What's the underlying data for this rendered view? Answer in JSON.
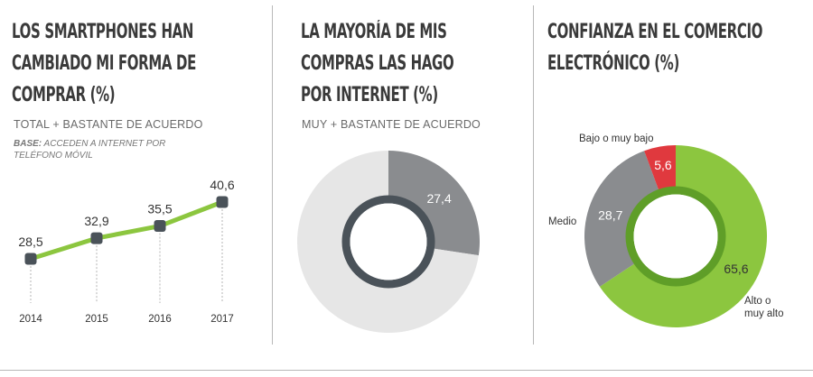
{
  "panels": {
    "p1": {
      "title_lines": [
        "LOS SMARTPHONES HAN",
        "CAMBIADO MI FORMA DE",
        "COMPRAR (%)"
      ],
      "subtitle": "TOTAL + BASTANTE DE ACUERDO",
      "base_label": "BASE:",
      "base_text": "ACCEDEN A INTERNET POR TELÉFONO MÓVIL"
    },
    "p2": {
      "title_lines": [
        "LA MAYORÍA DE MIS",
        "COMPRAS LAS HAGO",
        "POR INTERNET (%)"
      ],
      "subtitle": "MUY + BASTANTE DE ACUERDO"
    },
    "p3": {
      "title_lines": [
        "CONFIANZA EN EL COMERCIO",
        "ELECTRÓNICO (%)"
      ]
    }
  },
  "colors": {
    "green": "#8cc63f",
    "dark": "#4a5259",
    "gray": "#8a8c8f",
    "lightgray": "#e6e6e6",
    "red": "#e0393e"
  },
  "chart_data": [
    {
      "type": "line",
      "title": "LOS SMARTPHONES HAN CAMBIADO MI FORMA DE COMPRAR (%)",
      "x": [
        "2014",
        "2015",
        "2016",
        "2017"
      ],
      "series": [
        {
          "values": [
            28.5,
            32.9,
            35.5,
            40.6
          ],
          "labels": [
            "28,5",
            "32,9",
            "35,5",
            "40,6"
          ]
        }
      ]
    },
    {
      "type": "pie",
      "title": "LA MAYORÍA DE MIS COMPRAS LAS HAGO POR INTERNET (%)",
      "slices": [
        {
          "value": 27.4,
          "label": "27,4",
          "color": "#8a8c8f"
        },
        {
          "value": 72.6,
          "label": "",
          "color": "#e6e6e6"
        }
      ]
    },
    {
      "type": "pie",
      "title": "CONFIANZA EN EL COMERCIO ELECTRÓNICO (%)",
      "slices": [
        {
          "name": "Alto o muy alto",
          "value": 65.6,
          "label": "65,6",
          "color": "#8cc63f"
        },
        {
          "name": "Medio",
          "value": 28.7,
          "label": "28,7",
          "color": "#8a8c8f"
        },
        {
          "name": "Bajo o muy bajo",
          "value": 5.6,
          "label": "5,6",
          "color": "#e0393e"
        }
      ]
    }
  ]
}
